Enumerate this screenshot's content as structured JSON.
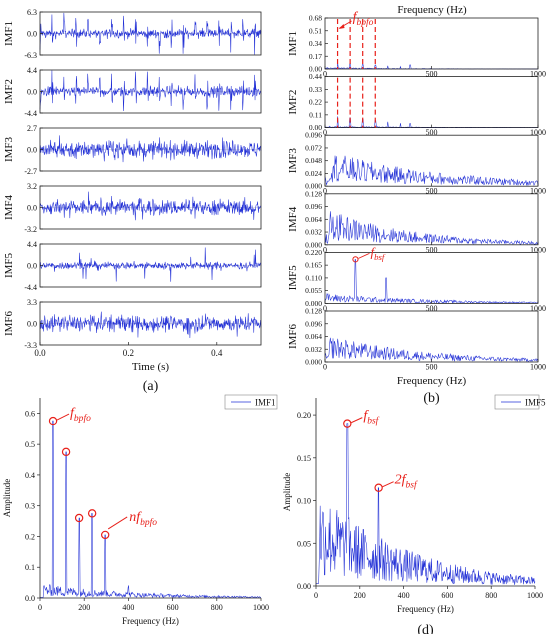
{
  "chart_data": [
    {
      "id": "a",
      "type": "line",
      "panel_caption": "(a)",
      "xlabel": "Time (s)",
      "xlim": [
        0,
        0.5
      ],
      "x_ticks": [
        "0.0",
        "0.2",
        "0.4"
      ],
      "x_tick_values": [
        0.0,
        0.2,
        0.4
      ],
      "series": [
        {
          "name": "IMF1",
          "ylim": [
            -6.3,
            6.3
          ],
          "y_ticks": [
            "6.3",
            "0.0",
            "-6.3"
          ],
          "y_tick_values": [
            6.3,
            0,
            -6.3
          ]
        },
        {
          "name": "IMF2",
          "ylim": [
            -4.4,
            4.4
          ],
          "y_ticks": [
            "4.4",
            "0.0",
            "-4.4"
          ],
          "y_tick_values": [
            4.4,
            0,
            -4.4
          ]
        },
        {
          "name": "IMF3",
          "ylim": [
            -2.7,
            2.7
          ],
          "y_ticks": [
            "2.7",
            "0.0",
            "-2.7"
          ],
          "y_tick_values": [
            2.7,
            0,
            -2.7
          ]
        },
        {
          "name": "IMF4",
          "ylim": [
            -3.2,
            3.2
          ],
          "y_ticks": [
            "3.2",
            "0.0",
            "-3.2"
          ],
          "y_tick_values": [
            3.2,
            0,
            -3.2
          ]
        },
        {
          "name": "IMF5",
          "ylim": [
            -4.4,
            4.4
          ],
          "y_ticks": [
            "4.4",
            "0.0",
            "-4.4"
          ],
          "y_tick_values": [
            4.4,
            0,
            -4.4
          ]
        },
        {
          "name": "IMF6",
          "ylim": [
            -3.3,
            3.3
          ],
          "y_ticks": [
            "3.3",
            "0.0",
            "-3.3"
          ],
          "y_tick_values": [
            3.3,
            0,
            -3.3
          ]
        }
      ]
    },
    {
      "id": "b",
      "type": "line",
      "panel_caption": "(b)",
      "title": "Frequency (Hz)",
      "xlabel": "Frequency (Hz)",
      "xlim": [
        0,
        1000
      ],
      "x_ticks": [
        "0",
        "500",
        "1000"
      ],
      "x_tick_values": [
        0,
        500,
        1000
      ],
      "annotations": [
        "f_bpfo",
        "f_bsf"
      ],
      "series": [
        {
          "name": "IMF1",
          "ylim": [
            0,
            0.68
          ],
          "y_ticks": [
            "0.68",
            "0.51",
            "0.34",
            "0.17",
            "0.00"
          ],
          "y_tick_values": [
            0.68,
            0.51,
            0.34,
            0.17,
            0.0
          ],
          "marker_lines_hz": [
            59,
            118,
            177,
            236
          ]
        },
        {
          "name": "IMF2",
          "ylim": [
            0,
            0.44
          ],
          "y_ticks": [
            "0.44",
            "0.33",
            "0.22",
            "0.11",
            "0.00"
          ],
          "y_tick_values": [
            0.44,
            0.33,
            0.22,
            0.11,
            0.0
          ],
          "marker_lines_hz": [
            59,
            118,
            177,
            236
          ]
        },
        {
          "name": "IMF3",
          "ylim": [
            0,
            0.096
          ],
          "y_ticks": [
            "0.096",
            "0.072",
            "0.048",
            "0.024",
            "0.000"
          ],
          "y_tick_values": [
            0.096,
            0.072,
            0.048,
            0.024,
            0.0
          ]
        },
        {
          "name": "IMF4",
          "ylim": [
            0,
            0.128
          ],
          "y_ticks": [
            "0.128",
            "0.096",
            "0.064",
            "0.032",
            "0.000"
          ],
          "y_tick_values": [
            0.128,
            0.096,
            0.064,
            0.032,
            0.0
          ]
        },
        {
          "name": "IMF5",
          "ylim": [
            0,
            0.22
          ],
          "y_ticks": [
            "0.220",
            "0.165",
            "0.110",
            "0.055",
            "0.000"
          ],
          "y_tick_values": [
            0.22,
            0.165,
            0.11,
            0.055,
            0.0
          ],
          "circle_hz": 143,
          "circle_value": 0.19
        },
        {
          "name": "IMF6",
          "ylim": [
            0,
            0.128
          ],
          "y_ticks": [
            "0.128",
            "0.096",
            "0.064",
            "0.032",
            "0.000"
          ],
          "y_tick_values": [
            0.128,
            0.096,
            0.064,
            0.032,
            0.0
          ]
        }
      ]
    },
    {
      "id": "c",
      "type": "line",
      "panel_caption": "(c)",
      "xlabel": "Frequency (Hz)",
      "ylabel": "Amplitude",
      "xlim": [
        0,
        1000
      ],
      "ylim": [
        0,
        0.65
      ],
      "x_ticks": [
        "0",
        "200",
        "400",
        "600",
        "800",
        "1000"
      ],
      "x_tick_values": [
        0,
        200,
        400,
        600,
        800,
        1000
      ],
      "y_ticks": [
        "0.0",
        "0.1",
        "0.2",
        "0.3",
        "0.4",
        "0.5",
        "0.6"
      ],
      "y_tick_values": [
        0,
        0.1,
        0.2,
        0.3,
        0.4,
        0.5,
        0.6
      ],
      "legend": {
        "label": "IMF1",
        "position": "top-right"
      },
      "peaks": [
        {
          "x": 59,
          "y": 0.575
        },
        {
          "x": 118,
          "y": 0.475
        },
        {
          "x": 177,
          "y": 0.26
        },
        {
          "x": 236,
          "y": 0.275
        },
        {
          "x": 295,
          "y": 0.205
        }
      ],
      "annotations": [
        "f_bpfo",
        "nf_bpfo"
      ]
    },
    {
      "id": "d",
      "type": "line",
      "panel_caption": "(d)",
      "xlabel": "Frequency (Hz)",
      "ylabel": "Amplitude",
      "xlim": [
        0,
        1000
      ],
      "ylim": [
        0,
        0.22
      ],
      "x_ticks": [
        "0",
        "200",
        "400",
        "600",
        "800",
        "1000"
      ],
      "x_tick_values": [
        0,
        200,
        400,
        600,
        800,
        1000
      ],
      "y_ticks": [
        "0.00",
        "0.05",
        "0.10",
        "0.15",
        "0.20"
      ],
      "y_tick_values": [
        0,
        0.05,
        0.1,
        0.15,
        0.2
      ],
      "legend": {
        "label": "IMF5",
        "position": "top-right"
      },
      "peaks": [
        {
          "x": 143,
          "y": 0.19
        },
        {
          "x": 286,
          "y": 0.115
        }
      ],
      "annotations": [
        "f_bsf",
        "2f_bsf"
      ]
    }
  ],
  "labels": {
    "f_bpfo": {
      "base": "f",
      "sub": "bpfo"
    },
    "nf_bpfo": {
      "base": "nf",
      "sub": "bpfo"
    },
    "f_bsf": {
      "base": "f",
      "sub": "bsf"
    },
    "2f_bsf": {
      "base": "2f",
      "sub": "bsf"
    }
  },
  "colors": {
    "signal": "#2230d6",
    "annotation": "#e8201a",
    "axis": "#222222"
  }
}
